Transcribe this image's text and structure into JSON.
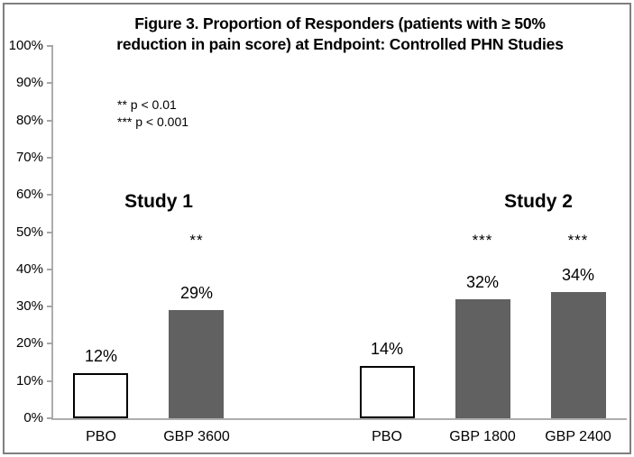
{
  "figure": {
    "title_line1": "Figure 3. Proportion of Responders (patients with ≥ 50%",
    "title_line2": "reduction in pain score) at Endpoint: Controlled PHN Studies"
  },
  "legend": {
    "line1": "** p < 0.01",
    "line2": "*** p < 0.001"
  },
  "chart_data": {
    "type": "bar",
    "title": "Figure 3. Proportion of Responders (patients with ≥ 50% reduction in pain score) at Endpoint: Controlled PHN Studies",
    "xlabel": "",
    "ylabel": "",
    "ylim": [
      0,
      100
    ],
    "grid": false,
    "ytick_labels": [
      "0%",
      "10%",
      "20%",
      "30%",
      "40%",
      "50%",
      "60%",
      "70%",
      "80%",
      "90%",
      "100%"
    ],
    "significance_notes": [
      "** p < 0.01",
      "*** p < 0.001"
    ],
    "groups": [
      {
        "name": "Study 1",
        "bars": [
          {
            "category": "PBO",
            "value": 12,
            "value_label": "12%",
            "significance": "",
            "fill": "#ffffff",
            "border": "#000000"
          },
          {
            "category": "GBP 3600",
            "value": 29,
            "value_label": "29%",
            "significance": "**",
            "fill": "#616161",
            "border": "#616161"
          }
        ]
      },
      {
        "name": "Study 2",
        "bars": [
          {
            "category": "PBO",
            "value": 14,
            "value_label": "14%",
            "significance": "",
            "fill": "#ffffff",
            "border": "#000000"
          },
          {
            "category": "GBP 1800",
            "value": 32,
            "value_label": "32%",
            "significance": "***",
            "fill": "#616161",
            "border": "#616161"
          },
          {
            "category": "GBP 2400",
            "value": 34,
            "value_label": "34%",
            "significance": "***",
            "fill": "#616161",
            "border": "#616161"
          }
        ]
      }
    ]
  },
  "colors": {
    "bar_gray": "#616161",
    "bar_white": "#ffffff",
    "bar_border_black": "#000000",
    "axis_line": "#adadad",
    "tick": "#a6a6a6",
    "frame_border": "#7f7f7f",
    "text": "#000000",
    "background": "#ffffff"
  }
}
